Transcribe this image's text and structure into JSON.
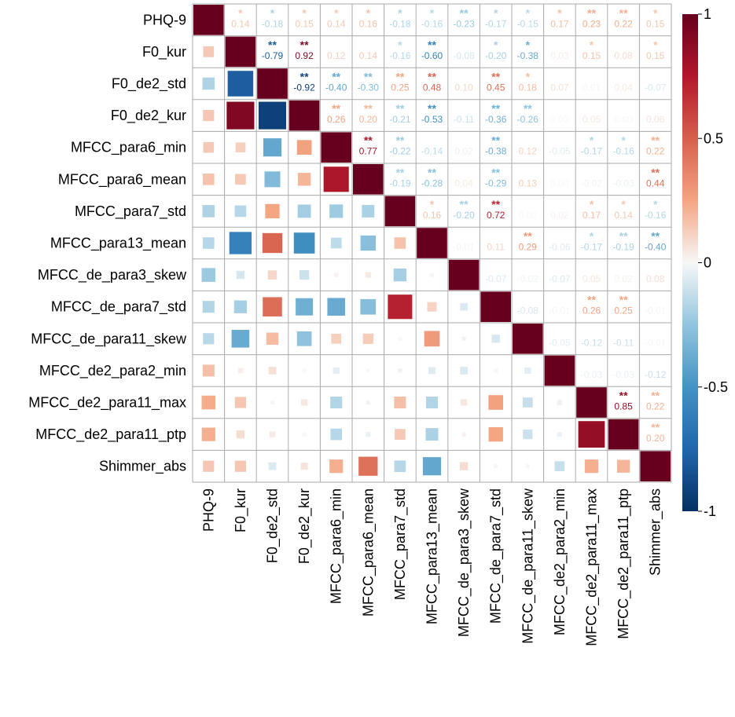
{
  "chart_data": {
    "type": "heatmap",
    "title": "",
    "variables": [
      "PHQ-9",
      "F0_kur",
      "F0_de2_std",
      "F0_de2_kur",
      "MFCC_para6_min",
      "MFCC_para6_mean",
      "MFCC_para7_std",
      "MFCC_para13_mean",
      "MFCC_de_para3_skew",
      "MFCC_de_para7_std",
      "MFCC_de_para11_skew",
      "MFCC_de2_para2_min",
      "MFCC_de2_para11_max",
      "MFCC_de2_para11_ptp",
      "Shimmer_abs"
    ],
    "upper_values": [
      [
        "0.14",
        "-0.18",
        "0.15",
        "0.14",
        "0.16",
        "-0.18",
        "-0.16",
        "-0.23",
        "-0.17",
        "-0.15",
        "0.17",
        "0.23",
        "0.22",
        "0.15"
      ],
      [
        "-0.79",
        "0.92",
        "0.12",
        "0.14",
        "-0.16",
        "-0.60",
        "-0.08",
        "-0.20",
        "-0.38",
        "0.03",
        "0.15",
        "0.08",
        "0.15"
      ],
      [
        "-0.92",
        "-0.40",
        "-0.30",
        "0.25",
        "0.48",
        "0.10",
        "0.45",
        "0.18",
        "0.07",
        "0.01",
        "0.04",
        "-0.07"
      ],
      [
        "0.26",
        "0.20",
        "-0.21",
        "-0.53",
        "-0.11",
        "-0.36",
        "-0.26",
        "0.00",
        "0.05",
        "0.00",
        "0.06"
      ],
      [
        "0.77",
        "-0.22",
        "-0.14",
        "0.02",
        "-0.38",
        "0.12",
        "-0.05",
        "-0.17",
        "-0.16",
        "0.22"
      ],
      [
        "-0.19",
        "-0.28",
        "0.04",
        "-0.29",
        "0.13",
        "0.00",
        "-0.02",
        "-0.03",
        "0.44"
      ],
      [
        "0.16",
        "-0.20",
        "0.72",
        "0.00",
        "0.02",
        "0.17",
        "0.14",
        "-0.16"
      ],
      [
        "-0.01",
        "0.11",
        "0.29",
        "-0.06",
        "-0.17",
        "-0.19",
        "-0.40"
      ],
      [
        "-0.07",
        "-0.02",
        "-0.07",
        "0.05",
        "0.02",
        "0.08"
      ],
      [
        "-0.08",
        "-0.01",
        "0.26",
        "0.25",
        "-0.01"
      ],
      [
        "-0.05",
        "-0.12",
        "-0.11",
        "-0.01"
      ],
      [
        "-0.03",
        "-0.03",
        "-0.12"
      ],
      [
        "0.85",
        "0.22"
      ],
      [
        "0.20"
      ]
    ],
    "upper_stars": [
      [
        "*",
        "*",
        "*",
        "*",
        "*",
        "*",
        "*",
        "**",
        "*",
        "*",
        "*",
        "**",
        "**",
        "*"
      ],
      [
        "**",
        "**",
        "",
        "",
        "*",
        "**",
        "",
        "*",
        "*",
        "",
        "*",
        "",
        "*"
      ],
      [
        "**",
        "**",
        "**",
        "**",
        "**",
        "",
        "**",
        "*",
        "",
        "",
        "",
        ""
      ],
      [
        "**",
        "**",
        "**",
        "**",
        "",
        "**",
        "**",
        "",
        "",
        "",
        ""
      ],
      [
        "**",
        "**",
        "",
        "",
        "**",
        "",
        "",
        "*",
        "*",
        "**"
      ],
      [
        "**",
        "**",
        "",
        "**",
        "",
        "",
        "",
        "",
        "**"
      ],
      [
        "*",
        "**",
        "**",
        "",
        "",
        "*",
        "*",
        "*"
      ],
      [
        "",
        "",
        "**",
        "",
        "*",
        "**",
        "**"
      ],
      [
        "",
        "",
        "",
        "",
        "",
        ""
      ],
      [
        "",
        "",
        "**",
        "**",
        ""
      ],
      [
        "",
        "",
        "",
        ""
      ],
      [
        "",
        "",
        ""
      ],
      [
        "**",
        "**"
      ],
      [
        "**"
      ]
    ],
    "color_scale": {
      "min": -1,
      "max": 1,
      "ticks": [
        "1",
        "0.5",
        "0",
        "-0.5",
        "-1"
      ],
      "tick_values": [
        1,
        0.5,
        0,
        -0.5,
        -1
      ]
    },
    "colors": {
      "negative": "#053061",
      "neutral": "#f7f7f7",
      "positive": "#67001f",
      "grid": "#aaaaaa"
    }
  }
}
